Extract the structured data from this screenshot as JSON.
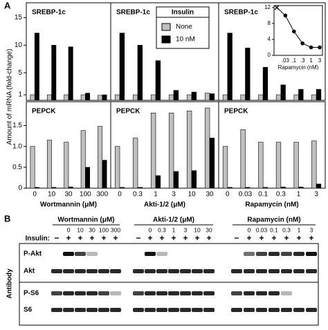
{
  "panel_a": {
    "label": "A",
    "y_axis_label": "Amount of mRNA (fold-change)",
    "legend_title": "Insulin"
  },
  "chart_data": [
    {
      "type": "bar",
      "title": "SREBP-1c",
      "categories": [
        null,
        null,
        null,
        null,
        null
      ],
      "series": [
        {
          "name": "None",
          "color": "#c0c0c0",
          "values": [
            1,
            1,
            1,
            1,
            0.9
          ]
        },
        {
          "name": "10 nM",
          "color": "#000000",
          "values": [
            12.2,
            10,
            9.7,
            1.3,
            1.0
          ]
        }
      ],
      "ylim": [
        0,
        17.7
      ],
      "yticks": [
        1,
        5,
        10,
        15
      ]
    },
    {
      "type": "bar",
      "title": "SREBP-1c",
      "categories": [
        null,
        null,
        null,
        null,
        null,
        null
      ],
      "series": [
        {
          "color": "#c0c0c0",
          "values": [
            1,
            1,
            1,
            1,
            1,
            1.3
          ]
        },
        {
          "color": "#000000",
          "values": [
            12.2,
            10,
            7.2,
            1.8,
            1.5,
            1.2
          ]
        }
      ],
      "ylim": [
        0,
        17.7
      ]
    },
    {
      "type": "bar",
      "title": "SREBP-1c",
      "categories": [
        null,
        null,
        null,
        null,
        null,
        null
      ],
      "series": [
        {
          "color": "#c0c0c0",
          "values": [
            1,
            1,
            1,
            1,
            1,
            1
          ]
        },
        {
          "color": "#000000",
          "values": [
            12.2,
            9.5,
            6.0,
            2.8,
            2.0,
            2.0
          ]
        }
      ],
      "ylim": [
        0,
        17.7
      ]
    },
    {
      "type": "bar",
      "title": "PEPCK",
      "categories": [
        "0",
        "10",
        "30",
        "100",
        "300"
      ],
      "xlabel": "Wortmannin (μM)",
      "series": [
        {
          "color": "#c0c0c0",
          "values": [
            1.0,
            1.15,
            1.1,
            1.38,
            1.48
          ]
        },
        {
          "color": "#000000",
          "values": [
            0.02,
            0.02,
            0.03,
            0.5,
            0.67
          ]
        }
      ],
      "ylim": [
        0,
        2.07
      ],
      "yticks": [
        0,
        0.5,
        {
          "value": 1,
          "label": "1.0"
        },
        1.5
      ]
    },
    {
      "type": "bar",
      "title": "PEPCK",
      "categories": [
        "0",
        "0.3",
        "1",
        "3",
        "10",
        "30"
      ],
      "xlabel": "Akti-1/2 (μM)",
      "series": [
        {
          "color": "#c0c0c0",
          "values": [
            1.0,
            1.2,
            1.8,
            1.8,
            1.85,
            1.92
          ]
        },
        {
          "color": "#000000",
          "values": [
            0.02,
            0.02,
            0.3,
            0.4,
            0.42,
            1.2
          ]
        }
      ],
      "ylim": [
        0,
        2.07
      ]
    },
    {
      "type": "bar",
      "title": "PEPCK",
      "categories": [
        "0",
        "0.03",
        "0.1",
        "0.3",
        "1",
        "3"
      ],
      "xlabel": "Rapamycin (nM)",
      "series": [
        {
          "color": "#c0c0c0",
          "values": [
            1.0,
            1.4,
            1.1,
            1.1,
            1.1,
            1.13
          ]
        },
        {
          "color": "#000000",
          "values": [
            0.02,
            0.02,
            0.02,
            0.03,
            0.03,
            0.1
          ]
        }
      ],
      "ylim": [
        0,
        2.07
      ]
    },
    {
      "type": "line",
      "categories": [
        null,
        ".03",
        ".1",
        ".3",
        "1",
        "3"
      ],
      "values": [
        12,
        10,
        6,
        3,
        2,
        2
      ],
      "color": "#000000",
      "xlabel": "Rapamycin (nM)",
      "ylim": [
        0,
        12.5
      ],
      "yticks": [
        0,
        4,
        8,
        12
      ]
    }
  ],
  "western_blot": {
    "label": "B",
    "insulin_label": "Insulin:",
    "antibody_label": "Antibody",
    "groups": [
      {
        "treatment": "Wortmannin (μM)",
        "doses": [
          "0",
          "10",
          "30",
          "100",
          "300"
        ],
        "insulin": [
          "−",
          "+",
          "+",
          "+",
          "+",
          "+"
        ]
      },
      {
        "treatment": "Akti-1/2 (μM)",
        "doses": [
          "0",
          "0.3",
          "1",
          "3",
          "10",
          "30"
        ],
        "insulin": [
          "−",
          "+",
          "+",
          "+",
          "+",
          "+",
          "+"
        ]
      },
      {
        "treatment": "Rapamycin (nM)",
        "doses": [
          "0",
          "0.03",
          "0.1",
          "0.3",
          "1",
          "3"
        ],
        "insulin": [
          "−",
          "+",
          "+",
          "+",
          "+",
          "+",
          "+"
        ]
      }
    ],
    "rows": [
      "P-Akt",
      "Akt",
      "P-S6",
      "S6"
    ]
  }
}
